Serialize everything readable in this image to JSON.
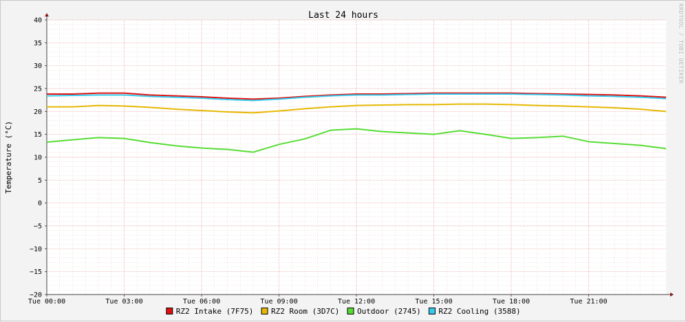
{
  "chart_data": {
    "type": "line",
    "title": "Last 24 hours",
    "ylabel": "Temperature (°C)",
    "xlabel": "",
    "ylim": [
      -20,
      40
    ],
    "y_ticks": [
      40,
      35,
      30,
      25,
      20,
      15,
      10,
      5,
      0,
      -5,
      -10,
      -15,
      -20
    ],
    "x_range_hours": [
      0,
      24
    ],
    "x_ticks": [
      {
        "hour": 0,
        "label": "Tue 00:00"
      },
      {
        "hour": 3,
        "label": "Tue 03:00"
      },
      {
        "hour": 6,
        "label": "Tue 06:00"
      },
      {
        "hour": 9,
        "label": "Tue 09:00"
      },
      {
        "hour": 12,
        "label": "Tue 12:00"
      },
      {
        "hour": 15,
        "label": "Tue 15:00"
      },
      {
        "hour": 18,
        "label": "Tue 18:00"
      },
      {
        "hour": 21,
        "label": "Tue 21:00"
      }
    ],
    "grid": true,
    "legend_position": "bottom",
    "series": [
      {
        "name": "RZ2 Intake (7F75)",
        "color": "#e01010",
        "x": [
          0,
          1,
          2,
          3,
          4,
          5,
          6,
          7,
          8,
          9,
          10,
          11,
          12,
          13,
          14,
          15,
          16,
          17,
          18,
          19,
          20,
          21,
          22,
          23,
          24
        ],
        "y": [
          23.8,
          23.8,
          24.0,
          24.0,
          23.6,
          23.4,
          23.2,
          22.9,
          22.7,
          22.9,
          23.3,
          23.6,
          23.8,
          23.8,
          23.9,
          24.0,
          24.0,
          24.0,
          24.0,
          23.9,
          23.8,
          23.7,
          23.6,
          23.4,
          23.1
        ]
      },
      {
        "name": "RZ2 Room (3D7C)",
        "color": "#e6b800",
        "x": [
          0,
          1,
          2,
          3,
          4,
          5,
          6,
          7,
          8,
          9,
          10,
          11,
          12,
          13,
          14,
          15,
          16,
          17,
          18,
          19,
          20,
          21,
          22,
          23,
          24
        ],
        "y": [
          21.0,
          21.0,
          21.3,
          21.2,
          20.9,
          20.5,
          20.2,
          19.9,
          19.7,
          20.1,
          20.6,
          21.0,
          21.3,
          21.4,
          21.5,
          21.5,
          21.6,
          21.6,
          21.5,
          21.3,
          21.2,
          21.0,
          20.8,
          20.5,
          20.0
        ]
      },
      {
        "name": "Outdoor (2745)",
        "color": "#55dd33",
        "x": [
          0,
          1,
          2,
          3,
          4,
          5,
          6,
          7,
          8,
          9,
          10,
          11,
          12,
          13,
          14,
          15,
          16,
          17,
          18,
          19,
          20,
          21,
          22,
          23,
          24
        ],
        "y": [
          13.3,
          13.8,
          14.3,
          14.1,
          13.2,
          12.5,
          12.0,
          11.7,
          11.1,
          12.8,
          14.0,
          15.9,
          16.2,
          15.6,
          15.3,
          15.0,
          15.8,
          15.0,
          14.1,
          14.3,
          14.6,
          13.4,
          13.0,
          12.6,
          11.9
        ]
      },
      {
        "name": "RZ2 Cooling (3588)",
        "color": "#33ccee",
        "x": [
          0,
          1,
          2,
          3,
          4,
          5,
          6,
          7,
          8,
          9,
          10,
          11,
          12,
          13,
          14,
          15,
          16,
          17,
          18,
          19,
          20,
          21,
          22,
          23,
          24
        ],
        "y": [
          23.4,
          23.5,
          23.6,
          23.6,
          23.3,
          23.1,
          22.9,
          22.6,
          22.4,
          22.7,
          23.1,
          23.4,
          23.6,
          23.6,
          23.7,
          23.8,
          23.8,
          23.8,
          23.8,
          23.7,
          23.6,
          23.4,
          23.3,
          23.1,
          22.8
        ]
      }
    ],
    "watermark": "RRDTOOL / TOBI OETIKER"
  }
}
